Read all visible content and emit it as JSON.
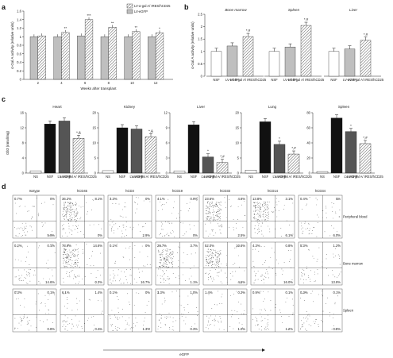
{
  "panel_letters": {
    "a": "a",
    "b": "b",
    "c": "c",
    "d": "d"
  },
  "colors": {
    "nsf": "#ffffff",
    "lvgfp": "#bfbfbf",
    "lvgal": "#e8e8e8",
    "black": "#111111",
    "dark": "#555555"
  },
  "chart_data": [
    {
      "id": "a",
      "type": "bar",
      "ylabel": "α-Gal A activity (relative units)",
      "xlabel": "Weeks after transplant",
      "ylim": [
        0,
        1.6
      ],
      "yticks": [
        0,
        0.2,
        0.4,
        0.6,
        0.8,
        1.0,
        1.2,
        1.4,
        1.6
      ],
      "categories": [
        "2",
        "4",
        "6",
        "8",
        "10",
        "12"
      ],
      "legend": [
        "LV-α-gal A/ IRES/hCD25",
        "LV-eGFP"
      ],
      "series": [
        {
          "style": "gray",
          "values": [
            1.0,
            1.0,
            1.02,
            1.0,
            1.0,
            1.0
          ]
        },
        {
          "style": "hatch",
          "values": [
            1.02,
            1.1,
            1.4,
            1.22,
            1.12,
            1.09
          ]
        }
      ],
      "annotations": [
        "",
        "**",
        "***",
        "**",
        "**",
        "*"
      ]
    },
    {
      "id": "b",
      "type": "bar",
      "ylabel": "α-Gal A activity (relative units)",
      "ylim": [
        0,
        2.5
      ],
      "yticks": [
        0,
        0.5,
        1.0,
        1.5,
        2.0,
        2.5
      ],
      "groups": [
        {
          "title": "Bone marrow",
          "categories": [
            "NSF",
            "LV-eGFP",
            "LV-α-gal A/ IRES/hCD25"
          ],
          "values": [
            1.0,
            1.22,
            1.6
          ],
          "annotations": [
            "",
            "",
            "*,#"
          ]
        },
        {
          "title": "Spleen",
          "categories": [
            "NSF",
            "LV-eGFP",
            "LV-α-gal A/ IRES/hCD25"
          ],
          "values": [
            1.0,
            1.18,
            2.05
          ],
          "annotations": [
            "",
            "",
            "*,#"
          ]
        },
        {
          "title": "Liver",
          "categories": [
            "NSF",
            "LV-eGFP",
            "LV-α-gal A/ IRES/hCD25"
          ],
          "values": [
            1.0,
            1.1,
            1.45
          ],
          "annotations": [
            "",
            "",
            "*,#"
          ]
        }
      ]
    },
    {
      "id": "c",
      "type": "bar",
      "ylabel": "Gb3 (nmol/mg)",
      "groups": [
        {
          "title": "Heart",
          "ylim": [
            0,
            16
          ],
          "yticks": [
            0,
            4,
            8,
            12,
            16
          ],
          "categories": [
            "NS",
            "NSF",
            "LV-eGFP",
            "LV-α-gal A/ IRES/hCD25"
          ],
          "values": [
            0.6,
            13.0,
            13.8,
            9.2
          ],
          "annotations": [
            "",
            "",
            "",
            "*,&"
          ]
        },
        {
          "title": "Kidney",
          "ylim": [
            0,
            20
          ],
          "yticks": [
            0,
            5,
            10,
            15,
            20
          ],
          "categories": [
            "NS",
            "NSF",
            "LV-eGFP",
            "LV-α-gal A/ IRES/hCD25"
          ],
          "values": [
            0.8,
            15.0,
            14.6,
            12.0
          ],
          "annotations": [
            "",
            "",
            "",
            "*,&"
          ]
        },
        {
          "title": "Liver",
          "ylim": [
            0,
            12
          ],
          "yticks": [
            0,
            3,
            6,
            9,
            12
          ],
          "categories": [
            "NS",
            "NSF",
            "LV-eGFP",
            "LV-α-gal A/ IRES/hCD25"
          ],
          "values": [
            0.4,
            9.6,
            3.2,
            2.1
          ],
          "annotations": [
            "",
            "",
            "*",
            "*,#"
          ]
        },
        {
          "title": "Lung",
          "ylim": [
            0,
            20
          ],
          "yticks": [
            0,
            5,
            10,
            15,
            20
          ],
          "categories": [
            "NS",
            "NSF",
            "LV-eGFP",
            "LV-α-gal A/ IRES/hCD25"
          ],
          "values": [
            1.0,
            17.0,
            9.5,
            6.3
          ],
          "annotations": [
            "",
            "",
            "*",
            "*,#"
          ]
        },
        {
          "title": "Spleen",
          "ylim": [
            0,
            80
          ],
          "yticks": [
            0,
            20,
            40,
            60,
            80
          ],
          "categories": [
            "NS",
            "NSF",
            "LV-eGFP",
            "LV-α-gal A/ IRES/hCD25"
          ],
          "values": [
            2,
            73,
            55,
            39
          ],
          "annotations": [
            "",
            "",
            "*",
            "*,#"
          ]
        }
      ]
    },
    {
      "id": "d",
      "type": "scatter",
      "xlabel": "eGFP",
      "columns": [
        "Isotype",
        "hCD45",
        "hCD3",
        "hCD19",
        "hCD33",
        "hCD14",
        "hCD34"
      ],
      "rows": [
        {
          "label": "Peripheral blood",
          "tl": [
            "0.7%",
            "36.2%",
            "3.3%",
            "4.1%",
            "23.6%",
            "13.8%",
            "0.4%"
          ],
          "tr": [
            "0%",
            "8.1%",
            "0%",
            "0.9%",
            "4.8%",
            "3.1%",
            "0%"
          ],
          "br": [
            "5.9%",
            "0%",
            "2.9%",
            "0%",
            "2.5%",
            "6.1%",
            "6.0%"
          ]
        },
        {
          "label": "Bone marrow",
          "tl": [
            "0.2%",
            "73.9%",
            "0.1%",
            "20.7%",
            "52.0%",
            "4.3%",
            "5.3%"
          ],
          "tr": [
            "0.1%",
            "14.6%",
            "0%",
            "3.7%",
            "10.6%",
            "0.8%",
            "1.2%"
          ],
          "br": [
            "14.6%",
            "0.3%",
            "16.7%",
            "1.1%",
            "4.5%",
            "16.0%",
            "13.8%"
          ]
        },
        {
          "label": "Spleen",
          "tl": [
            "0.3%",
            "6.1%",
            "0.1%",
            "3.3%",
            "1.4%",
            "0.9%",
            "0.3%"
          ],
          "tr": [
            "0.1%",
            "1.4%",
            "0%",
            "1.0%",
            "0.2%",
            "0.1%",
            "0.1%"
          ],
          "br": [
            "0.8%",
            "0.2%",
            "1.3%",
            "0.3%",
            "1.0%",
            "1.2%",
            "0.8%"
          ]
        }
      ]
    }
  ]
}
